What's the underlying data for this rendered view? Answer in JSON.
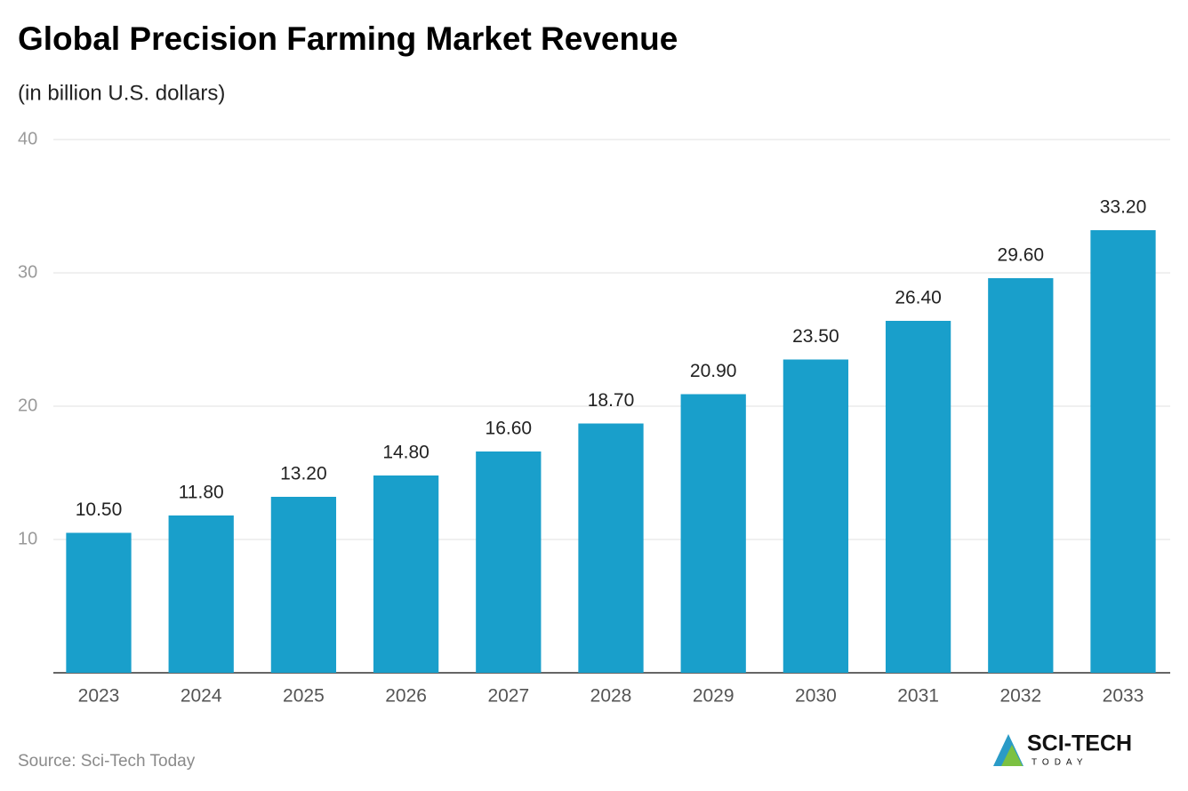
{
  "chart_data": {
    "type": "bar",
    "title": "Global Precision Farming Market Revenue",
    "subtitle": "(in billion U.S. dollars)",
    "categories": [
      "2023",
      "2024",
      "2025",
      "2026",
      "2027",
      "2028",
      "2029",
      "2030",
      "2031",
      "2032",
      "2033"
    ],
    "values": [
      10.5,
      11.8,
      13.2,
      14.8,
      16.6,
      18.7,
      20.9,
      23.5,
      26.4,
      29.6,
      33.2
    ],
    "value_labels": [
      "10.50",
      "11.80",
      "13.20",
      "14.80",
      "16.60",
      "18.70",
      "20.90",
      "23.50",
      "26.40",
      "29.60",
      "33.20"
    ],
    "color": "#199fcb",
    "ylim": [
      0,
      40
    ],
    "yticks": [
      10,
      20,
      30,
      40
    ],
    "grid": true,
    "source": "Source: Sci-Tech Today",
    "logo": {
      "line1": "SCI-TECH",
      "line2": "TODAY"
    }
  }
}
